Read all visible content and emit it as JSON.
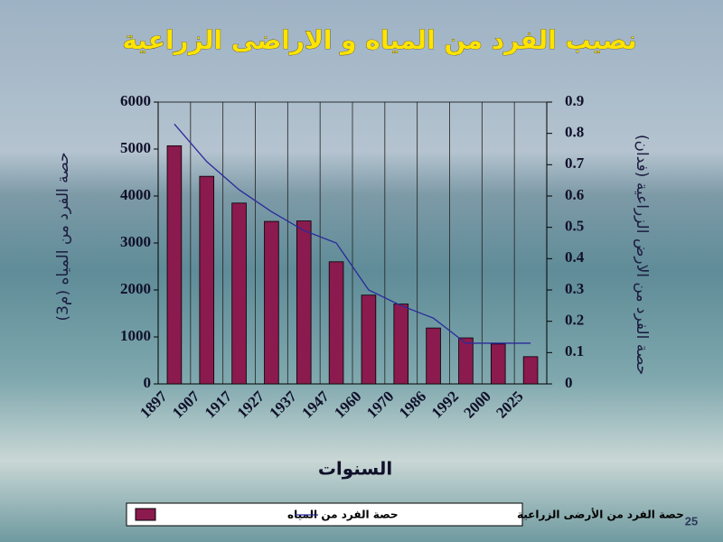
{
  "slide_number": 25,
  "chart_data": {
    "type": "bar-line",
    "title": "نصيب الفرد من المياه و الاراضى الزراعية",
    "x_label": "السنوات",
    "y_label": "حصة الفرد من المياه (م3)",
    "y2_label": "حصة الفرد من  الارض الزراعية (فدان)",
    "categories": [
      "1897",
      "1907",
      "1917",
      "1927",
      "1937",
      "1947",
      "1960",
      "1970",
      "1986",
      "1992",
      "2000",
      "2025"
    ],
    "series": [
      {
        "name": "حصة الفرد من المياه",
        "type": "bar",
        "color": "#8b1a4e",
        "values": [
          5070,
          4420,
          3850,
          3460,
          3470,
          2600,
          1890,
          1700,
          1190,
          980,
          850,
          580
        ]
      },
      {
        "name": "حصة الفرد من  الأرضى الزراعية",
        "type": "line",
        "axis": "y2",
        "color": "#2a2a9a",
        "values": [
          0.83,
          0.71,
          0.62,
          0.55,
          0.49,
          0.45,
          0.3,
          0.25,
          0.21,
          0.13,
          0.13,
          0.13
        ]
      }
    ],
    "ylim": [
      0,
      6000
    ],
    "yticks": [
      0,
      1000,
      2000,
      3000,
      4000,
      5000,
      6000
    ],
    "y2lim": [
      0,
      0.9
    ],
    "y2ticks": [
      0,
      0.1,
      0.2,
      0.3,
      0.4,
      0.5,
      0.6,
      0.7,
      0.8,
      0.9
    ],
    "grid": true
  }
}
